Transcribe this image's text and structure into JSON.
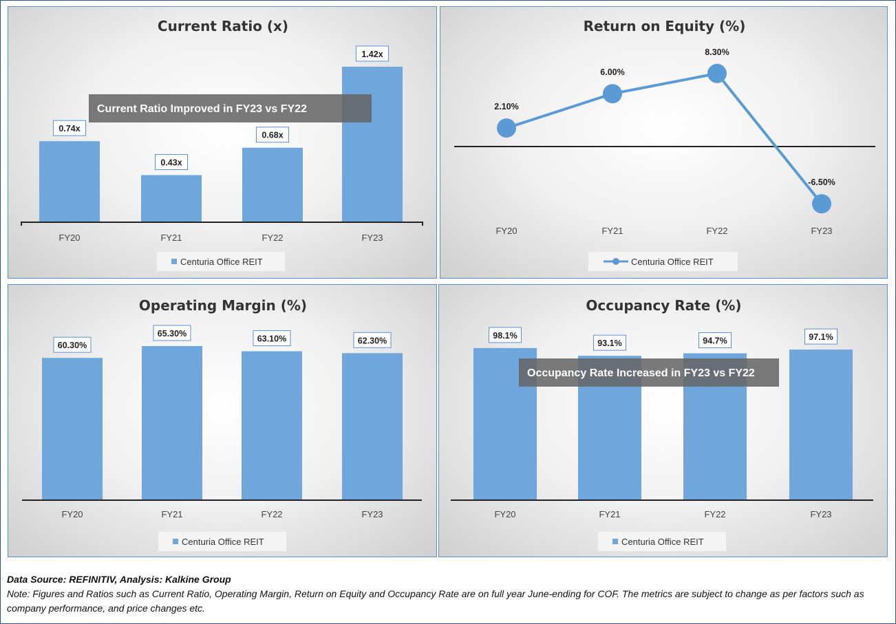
{
  "colors": {
    "bar": "#6fa6db",
    "line": "#5b9bd5",
    "axis": "#222222",
    "annotation_bg": "#666666",
    "label_border": "#5b8fd6"
  },
  "chart_data": [
    {
      "type": "bar",
      "title": "Current Ratio (x)",
      "categories": [
        "FY20",
        "FY21",
        "FY22",
        "FY23"
      ],
      "series": [
        {
          "name": "Centuria Office REIT",
          "values": [
            0.74,
            0.43,
            0.68,
            1.42
          ],
          "labels": [
            "0.74x",
            "0.43x",
            "0.68x",
            "1.42x"
          ]
        }
      ],
      "annotation": "Current Ratio Improved in FY23 vs FY22",
      "legend": "bottom",
      "grid": false
    },
    {
      "type": "line",
      "title": "Return on Equity (%)",
      "categories": [
        "FY20",
        "FY21",
        "FY22",
        "FY23"
      ],
      "series": [
        {
          "name": "Centuria Office REIT",
          "values": [
            2.1,
            6.0,
            8.3,
            -6.5
          ],
          "labels": [
            "2.10%",
            "6.00%",
            "8.30%",
            "-6.50%"
          ]
        }
      ],
      "legend": "bottom",
      "grid": false
    },
    {
      "type": "bar",
      "title": "Operating Margin (%)",
      "categories": [
        "FY20",
        "FY21",
        "FY22",
        "FY23"
      ],
      "series": [
        {
          "name": "Centuria Office REIT",
          "values": [
            60.3,
            65.3,
            63.1,
            62.3
          ],
          "labels": [
            "60.30%",
            "65.30%",
            "63.10%",
            "62.30%"
          ]
        }
      ],
      "legend": "bottom",
      "grid": false
    },
    {
      "type": "bar",
      "title": "Occupancy Rate (%)",
      "categories": [
        "FY20",
        "FY21",
        "FY22",
        "FY23"
      ],
      "series": [
        {
          "name": "Centuria Office REIT",
          "values": [
            98.1,
            93.1,
            94.7,
            97.1
          ],
          "labels": [
            "98.1%",
            "93.1%",
            "94.7%",
            "97.1%"
          ]
        }
      ],
      "annotation": "Occupancy Rate Increased in FY23 vs FY22",
      "legend": "bottom",
      "grid": false
    }
  ],
  "footer": {
    "source": "Data Source: REFINITIV, Analysis: Kalkine Group",
    "note": "Note: Figures and Ratios such as Current Ratio, Operating Margin, Return on Equity and Occupancy Rate are on full year June-ending for COF. The metrics are subject to change as per factors such as company performance, and price changes etc."
  }
}
